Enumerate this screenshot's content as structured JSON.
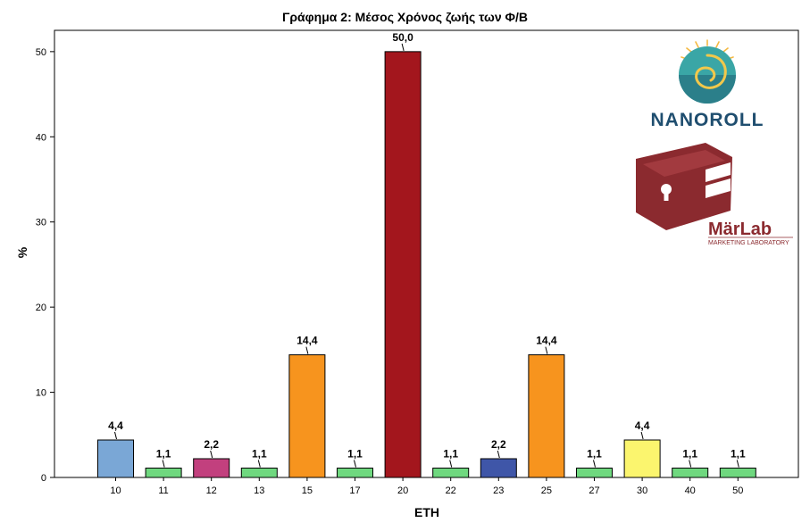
{
  "chart_data": {
    "type": "bar",
    "title": "Γράφημα 2: Μέσος Χρόνος ζωής των Φ/Β",
    "xlabel": "ΕΤΗ",
    "ylabel": "%",
    "ylim": [
      0,
      52.5
    ],
    "yticks": [
      0,
      10,
      20,
      30,
      40,
      50
    ],
    "grid": false,
    "categories": [
      "10",
      "11",
      "12",
      "13",
      "15",
      "17",
      "20",
      "22",
      "23",
      "25",
      "27",
      "30",
      "40",
      "50"
    ],
    "values": [
      4.4,
      1.1,
      2.2,
      1.1,
      14.4,
      1.1,
      50.0,
      1.1,
      2.2,
      14.4,
      1.1,
      4.4,
      1.1,
      1.1
    ],
    "value_labels": [
      "4,4",
      "1,1",
      "2,2",
      "1,1",
      "14,4",
      "1,1",
      "50,0",
      "1,1",
      "2,2",
      "14,4",
      "1,1",
      "4,4",
      "1,1",
      "1,1"
    ],
    "colors": [
      "#7aa7d6",
      "#6fd87f",
      "#c2407e",
      "#6fd87f",
      "#f7941e",
      "#6fd87f",
      "#a3161d",
      "#6fd87f",
      "#3f56a8",
      "#f7941e",
      "#6fd87f",
      "#fbf56e",
      "#6fd87f",
      "#6fd87f"
    ]
  },
  "logos": {
    "nanoroll": {
      "text": "NANOROLL",
      "color": "#1f4e6f"
    },
    "marlab": {
      "text": "MärLab",
      "subtitle": "MARKETING LABORATORY",
      "color": "#8b2a2f"
    }
  }
}
